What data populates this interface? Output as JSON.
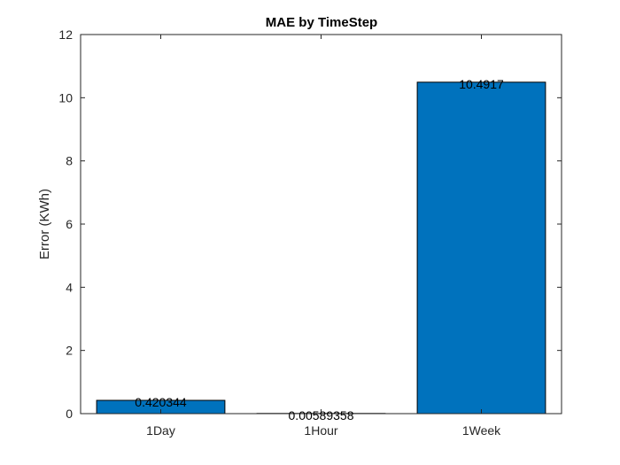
{
  "chart_data": {
    "type": "bar",
    "title": "MAE by TimeStep",
    "xlabel": "",
    "ylabel": "Error (KWh)",
    "categories": [
      "1Day",
      "1Hour",
      "1Week"
    ],
    "values": [
      0.420344,
      0.00589358,
      10.4917
    ],
    "data_labels": [
      "0.420344",
      "0.00589358",
      "10.4917"
    ],
    "ylim": [
      0,
      12
    ],
    "yticks": [
      0,
      2,
      4,
      6,
      8,
      10,
      12
    ],
    "ytick_labels": [
      "0",
      "2",
      "4",
      "6",
      "8",
      "10",
      "12"
    ],
    "grid": false,
    "legend": "none",
    "bar_color": "#0072BD"
  }
}
